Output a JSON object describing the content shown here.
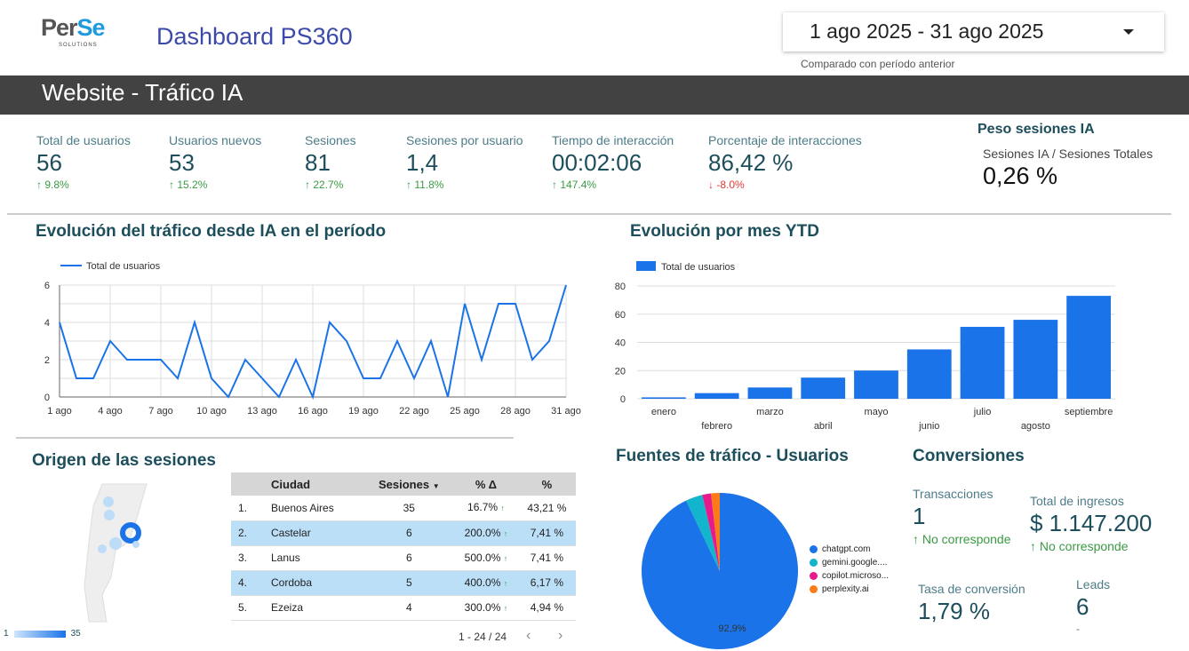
{
  "header": {
    "logo_main": "Per",
    "logo_accent": "Se",
    "logo_sub": "SOLUTIONS",
    "title": "Dashboard PS360",
    "date_range": "1 ago 2025 - 31 ago 2025",
    "compare": "Comparado con período anterior"
  },
  "section_title": "Website - Tráfico IA",
  "kpis": [
    {
      "label": "Total de usuarios",
      "value": "56",
      "delta": "9.8%",
      "dir": "up"
    },
    {
      "label": "Usuarios nuevos",
      "value": "53",
      "delta": "15.2%",
      "dir": "up"
    },
    {
      "label": "Sesiones",
      "value": "81",
      "delta": "22.7%",
      "dir": "up"
    },
    {
      "label": "Sesiones por usuario",
      "value": "1,4",
      "delta": "11.8%",
      "dir": "up"
    },
    {
      "label": "Tiempo de interacción",
      "value": "00:02:06",
      "delta": "147.4%",
      "dir": "up"
    },
    {
      "label": "Porcentaje de interacciones",
      "value": "86,42 %",
      "delta": "-8.0%",
      "dir": "down"
    }
  ],
  "peso": {
    "title": "Peso sesiones IA",
    "label": "Sesiones IA / Sesiones Totales",
    "value": "0,26 %"
  },
  "colors": {
    "blue": "#1a73e8",
    "green": "#3a9a43",
    "red": "#e53935"
  },
  "chart_data": [
    {
      "type": "line",
      "title": "Evolución del tráfico desde IA en el período",
      "legend": "Total de usuarios",
      "legend_position": "top-left",
      "ylim": [
        0,
        6
      ],
      "yticks": [
        "0",
        "2",
        "4",
        "6"
      ],
      "xticks": [
        "1 ago",
        "4 ago",
        "7 ago",
        "10 ago",
        "13 ago",
        "16 ago",
        "19 ago",
        "22 ago",
        "25 ago",
        "28 ago",
        "31 ago"
      ],
      "values": [
        4,
        1,
        1,
        3,
        2,
        2,
        2,
        1,
        4,
        1,
        0,
        2,
        1,
        0,
        2,
        0,
        4,
        3,
        1,
        1,
        3,
        1,
        3,
        0,
        5,
        2,
        5,
        5,
        2,
        3,
        6
      ]
    },
    {
      "type": "bar",
      "title": "Evolución por mes YTD",
      "legend": "Total de usuarios",
      "legend_position": "top-left",
      "ylim": [
        0,
        80
      ],
      "yticks": [
        "0",
        "20",
        "40",
        "60",
        "80"
      ],
      "categories": [
        "enero",
        "febrero",
        "marzo",
        "abril",
        "mayo",
        "junio",
        "julio",
        "agosto",
        "septiembre"
      ],
      "values": [
        1,
        4,
        8,
        15,
        20,
        35,
        51,
        56,
        73
      ]
    },
    {
      "type": "pie",
      "title": "Fuentes de tráfico - Usuarios",
      "labels": [
        "chatgpt.com",
        "gemini.google....",
        "copilot.microso...",
        "perplexity.ai"
      ],
      "values": [
        92.9,
        3.5,
        1.8,
        1.8
      ],
      "colors": [
        "#1a73e8",
        "#12b5cb",
        "#e8198b",
        "#fa7b17"
      ],
      "data_label": "92,9%",
      "legend_position": "right"
    }
  ],
  "origen": {
    "title": "Origen de las sesiones",
    "legend_min": "1",
    "legend_max": "35",
    "headers": [
      "Ciudad",
      "Sesiones",
      "% Δ",
      "%"
    ],
    "rows": [
      [
        "1.",
        "Buenos Aires",
        "35",
        "16.7%",
        "43,21 %"
      ],
      [
        "2.",
        "Castelar",
        "6",
        "200.0%",
        "7,41 %"
      ],
      [
        "3.",
        "Lanus",
        "6",
        "500.0%",
        "7,41 %"
      ],
      [
        "4.",
        "Cordoba",
        "5",
        "400.0%",
        "6,17 %"
      ],
      [
        "5.",
        "Ezeiza",
        "4",
        "300.0%",
        "4,94 %"
      ]
    ],
    "pagination": "1 - 24 / 24"
  },
  "conversiones": {
    "title": "Conversiones",
    "items": [
      {
        "label": "Transacciones",
        "value": "1",
        "delta": "No corresponde"
      },
      {
        "label": "Total de ingresos",
        "value": "$ 1.147.200",
        "delta": "No corresponde"
      },
      {
        "label": "Tasa de conversión",
        "value": "1,79 %"
      },
      {
        "label": "Leads",
        "value": "6",
        "delta": "-"
      }
    ]
  }
}
